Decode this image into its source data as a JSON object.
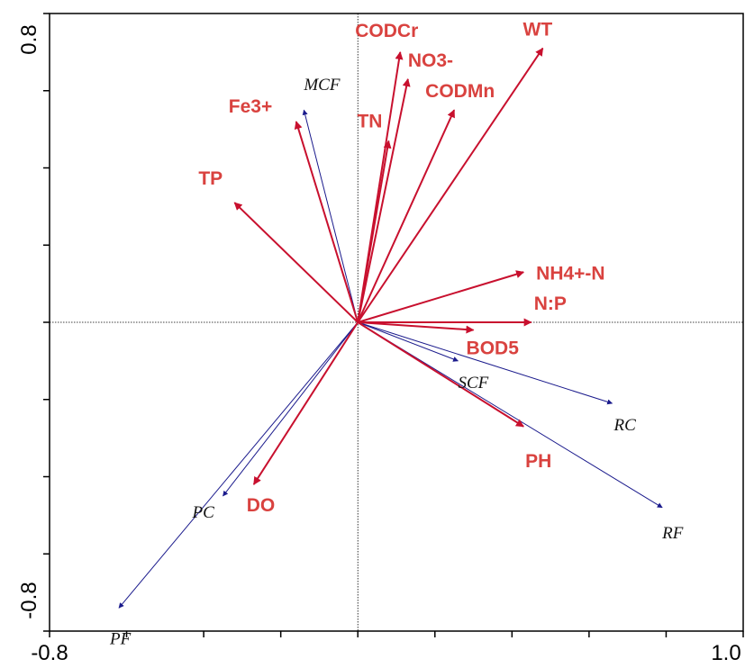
{
  "chart_data": {
    "type": "scatter",
    "subtype": "rda-biplot",
    "title": "",
    "xlabel": "",
    "ylabel": "",
    "xlim": [
      -0.8,
      1.0
    ],
    "ylim": [
      -0.8,
      0.8
    ],
    "x_tick_labels": [
      "-0.8",
      "1.0"
    ],
    "y_tick_labels": [
      "0.8",
      "-0.8"
    ],
    "grid": false,
    "zero_lines": true,
    "env_color": "#c8102e",
    "env_label_color": "#d9423f",
    "species_color": "#1a1a8c",
    "environmental_variables": [
      {
        "name": "WT",
        "x": 0.48,
        "y": 0.71
      },
      {
        "name": "CODCr",
        "x": 0.11,
        "y": 0.7
      },
      {
        "name": "NO3-",
        "x": 0.13,
        "y": 0.63
      },
      {
        "name": "CODMn",
        "x": 0.25,
        "y": 0.55
      },
      {
        "name": "TN",
        "x": 0.08,
        "y": 0.47
      },
      {
        "name": "Fe3+",
        "x": -0.16,
        "y": 0.52
      },
      {
        "name": "TP",
        "x": -0.32,
        "y": 0.31
      },
      {
        "name": "NH4+-N",
        "x": 0.43,
        "y": 0.13
      },
      {
        "name": "N:P",
        "x": 0.45,
        "y": 0.0
      },
      {
        "name": "BOD5",
        "x": 0.3,
        "y": -0.02
      },
      {
        "name": "PH",
        "x": 0.43,
        "y": -0.27
      },
      {
        "name": "DO",
        "x": -0.27,
        "y": -0.42
      }
    ],
    "species": [
      {
        "name": "MCF",
        "x": -0.14,
        "y": 0.55
      },
      {
        "name": "SCF",
        "x": 0.26,
        "y": -0.1
      },
      {
        "name": "RC",
        "x": 0.66,
        "y": -0.21
      },
      {
        "name": "RF",
        "x": 0.79,
        "y": -0.48
      },
      {
        "name": "PC",
        "x": -0.35,
        "y": -0.45
      },
      {
        "name": "PF",
        "x": -0.62,
        "y": -0.74
      }
    ]
  }
}
